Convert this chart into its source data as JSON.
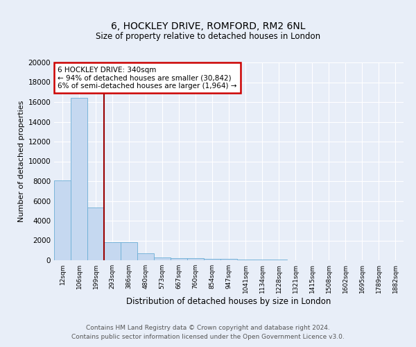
{
  "title1": "6, HOCKLEY DRIVE, ROMFORD, RM2 6NL",
  "title2": "Size of property relative to detached houses in London",
  "xlabel": "Distribution of detached houses by size in London",
  "ylabel": "Number of detached properties",
  "categories": [
    "12sqm",
    "106sqm",
    "199sqm",
    "293sqm",
    "386sqm",
    "480sqm",
    "573sqm",
    "667sqm",
    "760sqm",
    "854sqm",
    "947sqm",
    "1041sqm",
    "1134sqm",
    "1228sqm",
    "1321sqm",
    "1415sqm",
    "1508sqm",
    "1602sqm",
    "1695sqm",
    "1789sqm",
    "1882sqm"
  ],
  "values": [
    8100,
    16400,
    5300,
    1800,
    1800,
    700,
    300,
    200,
    200,
    150,
    150,
    100,
    80,
    50,
    30,
    20,
    15,
    10,
    8,
    5,
    3
  ],
  "bar_color": "#c5d8f0",
  "bar_edge_color": "#6baed6",
  "vline_x_index": 2.5,
  "vline_color": "#990000",
  "annotation_text": "6 HOCKLEY DRIVE: 340sqm\n← 94% of detached houses are smaller (30,842)\n6% of semi-detached houses are larger (1,964) →",
  "annotation_box_color": "#ffffff",
  "annotation_box_edge": "#cc0000",
  "ylim": [
    0,
    20000
  ],
  "yticks": [
    0,
    2000,
    4000,
    6000,
    8000,
    10000,
    12000,
    14000,
    16000,
    18000,
    20000
  ],
  "footer_line1": "Contains HM Land Registry data © Crown copyright and database right 2024.",
  "footer_line2": "Contains public sector information licensed under the Open Government Licence v3.0.",
  "bg_color": "#e8eef8",
  "plot_bg_color": "#e8eef8",
  "grid_color": "#ffffff",
  "title1_fontsize": 10,
  "title2_fontsize": 8.5,
  "ylabel_fontsize": 8,
  "xlabel_fontsize": 8.5,
  "tick_fontsize": 7.5,
  "xtick_fontsize": 6.5,
  "footer_fontsize": 6.5,
  "footer_color": "#555555"
}
